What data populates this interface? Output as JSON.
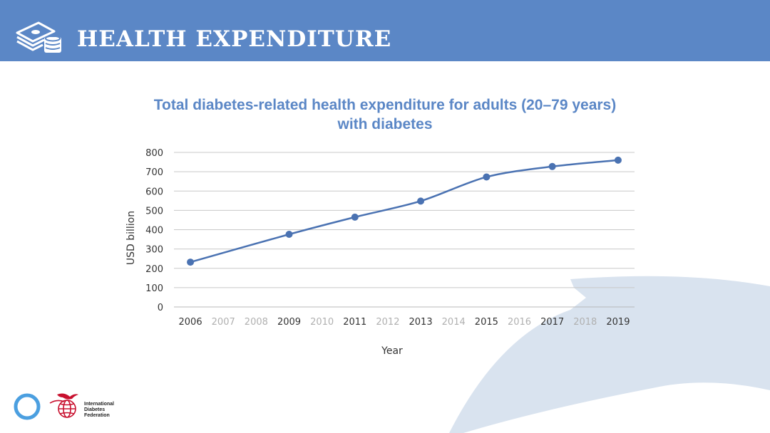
{
  "header": {
    "title": "HEALTH EXPENDITURE",
    "icon": "money-stack-icon"
  },
  "colors": {
    "header_bg": "#5b87c6",
    "title": "#5b87c6",
    "series": "#4a72b2",
    "grid": "#c8c8c8",
    "highlight_tick": "#333333",
    "muted_tick": "#b0b0b0",
    "decor": "#d9e3ef",
    "logo_red": "#c8102e"
  },
  "chart_data": {
    "type": "line",
    "title": "Total diabetes-related health expenditure for adults (20–79 years) with diabetes",
    "title_lines": [
      "Total diabetes-related health expenditure for adults (20–79 years)",
      "with diabetes"
    ],
    "xlabel": "Year",
    "ylabel": "USD billion",
    "categories": [
      "2006",
      "2007",
      "2008",
      "2009",
      "2010",
      "2011",
      "2012",
      "2013",
      "2014",
      "2015",
      "2016",
      "2017",
      "2018",
      "2019"
    ],
    "highlighted_categories": [
      "2006",
      "2009",
      "2011",
      "2013",
      "2015",
      "2017",
      "2019"
    ],
    "ylim": [
      0,
      800
    ],
    "yticks": [
      0,
      100,
      200,
      300,
      400,
      500,
      600,
      700,
      800
    ],
    "grid": true,
    "series": [
      {
        "points": [
          {
            "x": "2006",
            "y": 232
          },
          {
            "x": "2009",
            "y": 376
          },
          {
            "x": "2011",
            "y": 465
          },
          {
            "x": "2013",
            "y": 548
          },
          {
            "x": "2015",
            "y": 673
          },
          {
            "x": "2017",
            "y": 727
          },
          {
            "x": "2019",
            "y": 760
          }
        ]
      }
    ]
  },
  "footer": {
    "ring_icon": "blue-circle-icon",
    "logo_icon": "idf-bird-globe-icon",
    "org_lines": [
      "International",
      "Diabetes",
      "Federation"
    ]
  }
}
